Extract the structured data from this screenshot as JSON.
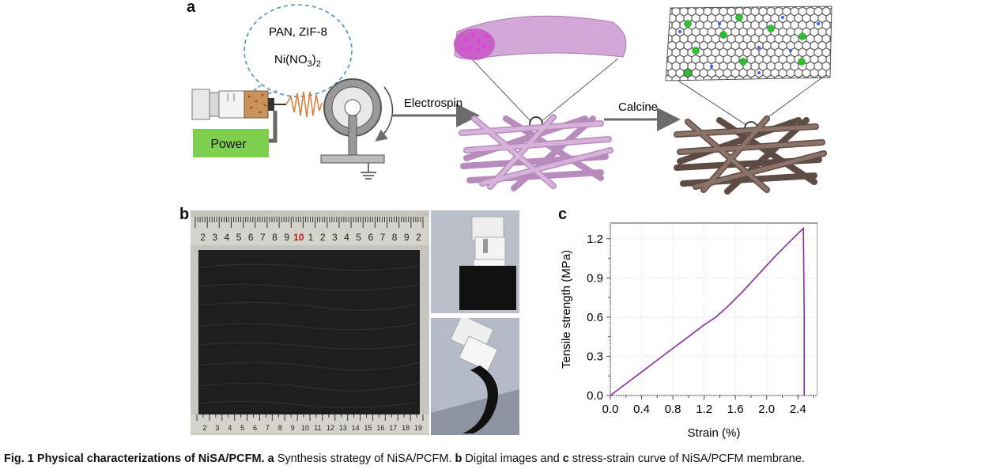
{
  "panel_a": {
    "letter": "a",
    "bubble_line1": "PAN, ZIF-8",
    "bubble_line2_pre": "Ni(NO",
    "bubble_sub1": "3",
    "bubble_line2_mid": ")",
    "bubble_sub2": "2",
    "power_label": "Power",
    "arrow1_label": "Electrospin",
    "arrow2_label": "Calcine",
    "colors": {
      "power_box": "#7fcf4f",
      "fiber_pink": "#c79ac9",
      "fiber_brown": "#6e5a52",
      "arrow": "#6b6b6b",
      "bubble_border": "#4a8fd0"
    }
  },
  "panel_b": {
    "letter": "b",
    "ruler_top_numbers": [
      "2",
      "3",
      "4",
      "5",
      "6",
      "7",
      "8",
      "9",
      "10",
      "1",
      "2",
      "3",
      "4",
      "5",
      "6",
      "7",
      "8",
      "9",
      "2"
    ],
    "ruler_bottom_numbers": [
      "2",
      "3",
      "4",
      "5",
      "6",
      "7",
      "8",
      "9",
      "10",
      "11",
      "12",
      "13",
      "14",
      "15",
      "16",
      "17",
      "18",
      "19"
    ]
  },
  "panel_c": {
    "letter": "c"
  },
  "chart_data": {
    "type": "line",
    "xlabel": "Strain (%)",
    "ylabel": "Tensile strength (MPa)",
    "xlim": [
      0.0,
      2.65
    ],
    "ylim": [
      0.0,
      1.32
    ],
    "xticks": [
      "0.0",
      "0.4",
      "0.8",
      "1.2",
      "1.6",
      "2.0",
      "2.4"
    ],
    "yticks": [
      "0.0",
      "0.3",
      "0.6",
      "0.9",
      "1.2"
    ],
    "grid": true,
    "series": [
      {
        "color": "#8a2d9e",
        "x": [
          0.0,
          0.2,
          0.4,
          0.6,
          0.8,
          1.0,
          1.2,
          1.35,
          1.5,
          1.7,
          1.9,
          2.1,
          2.3,
          2.47,
          2.48,
          2.48
        ],
        "y": [
          0.0,
          0.09,
          0.18,
          0.27,
          0.36,
          0.45,
          0.54,
          0.6,
          0.68,
          0.8,
          0.93,
          1.06,
          1.18,
          1.28,
          0.6,
          0.0
        ]
      }
    ]
  },
  "caption": {
    "fig_label": "Fig. 1 Physical characterizations of NiSA/PCFM.",
    "a_letter": "a",
    "a_text": " Synthesis strategy of NiSA/PCFM. ",
    "b_letter": "b",
    "b_text": " Digital images and ",
    "c_letter": "c",
    "c_text": " stress-strain curve of NiSA/PCFM membrane."
  }
}
